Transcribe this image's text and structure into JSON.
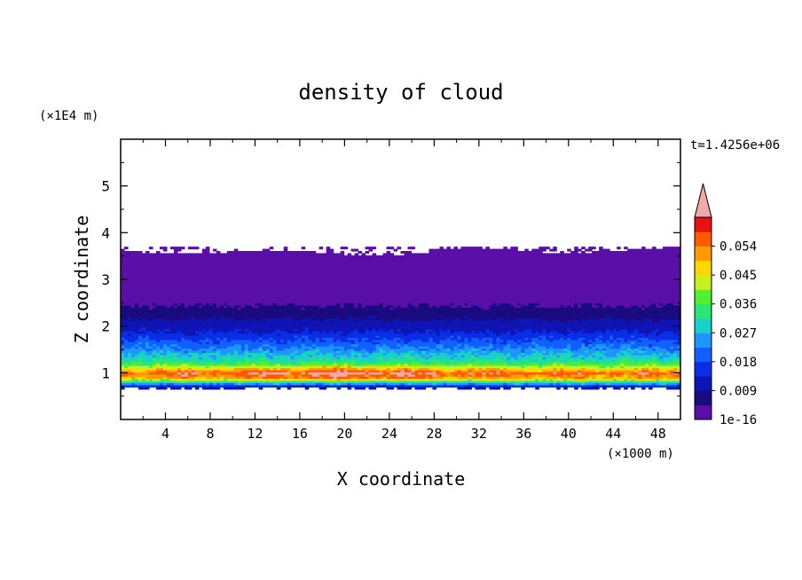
{
  "chart_data": {
    "type": "heatmap",
    "title": "density of cloud",
    "xlabel": "X coordinate",
    "ylabel": "Z coordinate",
    "x_unit": "(×1000 m)",
    "y_unit": "(×1E4 m)",
    "time_label": "t=1.4256e+06",
    "xlim": [
      0,
      50
    ],
    "ylim": [
      0,
      6
    ],
    "x_ticks": [
      "4",
      "8",
      "12",
      "16",
      "20",
      "24",
      "28",
      "32",
      "36",
      "40",
      "44",
      "48"
    ],
    "y_ticks": [
      "1",
      "2",
      "3",
      "4",
      "5"
    ],
    "colorbar": {
      "labels": [
        "1e-16",
        "0.009",
        "0.018",
        "0.027",
        "0.036",
        "0.045",
        "0.054"
      ],
      "levels": [
        0,
        0.0045,
        0.009,
        0.0135,
        0.018,
        0.0225,
        0.027,
        0.0315,
        0.036,
        0.0405,
        0.045,
        0.0495,
        0.054,
        0.0585
      ],
      "colors": [
        "#5a0fa8",
        "#1a0a80",
        "#0f14b4",
        "#0a2ee6",
        "#1060ff",
        "#1e96ff",
        "#18d2c8",
        "#28e678",
        "#50f032",
        "#c8f01e",
        "#ffd700",
        "#ff9a00",
        "#ff5a00",
        "#e81010"
      ],
      "extend_color": "#f4a8a8",
      "extend": "max"
    },
    "field_profile": {
      "z": [
        0.7,
        0.8,
        0.9,
        1.0,
        1.1,
        1.2,
        1.3,
        1.45,
        1.6,
        1.75,
        1.9,
        2.1,
        2.3,
        2.6,
        2.9,
        3.2,
        3.5
      ],
      "value": [
        0.01,
        0.032,
        0.05,
        0.056,
        0.046,
        0.036,
        0.03,
        0.026,
        0.021,
        0.017,
        0.013,
        0.01,
        0.006,
        0.003,
        0.0012,
        0.0004,
        0.0001
      ]
    },
    "cloud_base": 0.65,
    "cloud_top": 3.7
  }
}
